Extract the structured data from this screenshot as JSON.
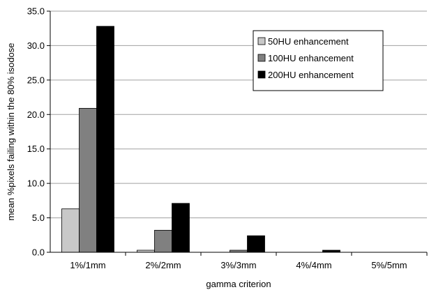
{
  "chart_data": {
    "type": "bar",
    "title": "",
    "xlabel": "gamma criterion",
    "ylabel": "mean %pixels failing within the 80% isodose",
    "ylim": [
      0,
      35
    ],
    "yticks": [
      "0.0",
      "5.0",
      "10.0",
      "15.0",
      "20.0",
      "25.0",
      "30.0",
      "35.0"
    ],
    "grid": true,
    "legend_position": "top-right",
    "categories": [
      "1%/1mm",
      "2%/2mm",
      "3%/3mm",
      "4%/4mm",
      "5%/5mm"
    ],
    "series": [
      {
        "name": "50HU enhancement",
        "color": "#c8c8c8",
        "values": [
          6.3,
          0.3,
          0.0,
          0.0,
          0.0
        ]
      },
      {
        "name": "100HU enhancement",
        "color": "#808080",
        "values": [
          20.9,
          3.2,
          0.3,
          0.0,
          0.0
        ]
      },
      {
        "name": "200HU enhancement",
        "color": "#000000",
        "values": [
          32.8,
          7.1,
          2.4,
          0.3,
          0.0
        ]
      }
    ]
  }
}
